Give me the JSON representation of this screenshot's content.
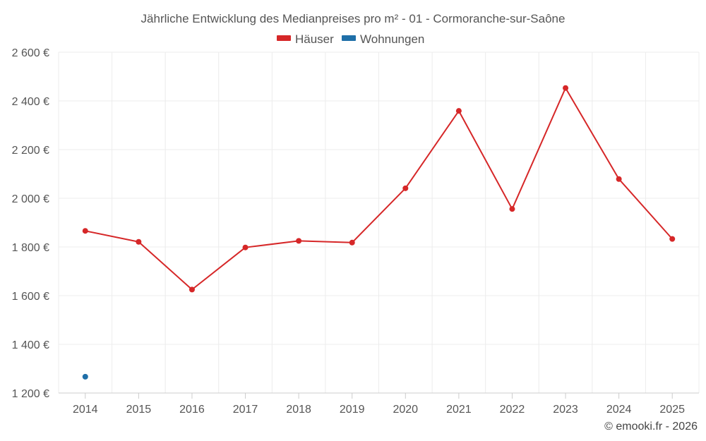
{
  "chart_data": {
    "type": "line",
    "title": "Jährliche Entwicklung des Medianpreises pro m² - 01 - Cormoranche-sur-Saône",
    "xlabel": "",
    "ylabel": "",
    "categories": [
      "2014",
      "2015",
      "2016",
      "2017",
      "2018",
      "2019",
      "2020",
      "2021",
      "2022",
      "2023",
      "2024",
      "2025"
    ],
    "ylim": [
      1200,
      2600
    ],
    "yticks": [
      1200,
      1400,
      1600,
      1800,
      2000,
      2200,
      2400,
      2600
    ],
    "ytick_labels": [
      "1 200 €",
      "1 400 €",
      "1 600 €",
      "1 800 €",
      "2 000 €",
      "2 200 €",
      "2 400 €",
      "2 600 €"
    ],
    "grid": true,
    "legend_position": "top-center",
    "series": [
      {
        "name": "Häuser",
        "color": "#d62728",
        "values": [
          1866,
          1821,
          1625,
          1798,
          1825,
          1818,
          2041,
          2359,
          1956,
          2453,
          2079,
          1833
        ]
      },
      {
        "name": "Wohnungen",
        "color": "#1f6fa8",
        "values": [
          1267,
          null,
          null,
          null,
          null,
          null,
          null,
          null,
          null,
          null,
          null,
          null
        ]
      }
    ],
    "credit": "© emooki.fr - 2026"
  }
}
